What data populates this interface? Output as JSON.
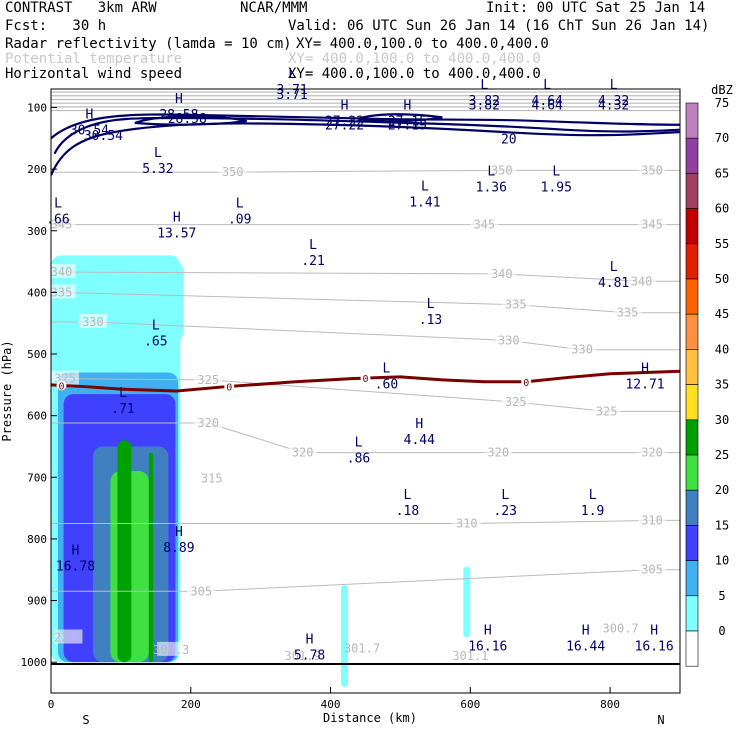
{
  "header": {
    "model": "CONTRAST   3km ARW",
    "org": "NCAR/MMM",
    "init": "Init: 00 UTC Sat 25 Jan 14",
    "fcst": "Fcst:   30 h",
    "valid": "Valid: 06 UTC Sun 26 Jan 14 (16 ChT Sun 26 Jan 14)",
    "field1": "Radar reflectivity (lamda = 10 cm)",
    "field1_xy": "XY= 400.0,100.0 to 400.0,400.0",
    "field2": "Potential temperature",
    "field2_xy": "XY= 400.0,100.0 to 400.0,400.0",
    "field3": "Horizontal wind speed",
    "field3_xy": "XY= 400.0,100.0 to 400.0,400.0"
  },
  "colors": {
    "wind": "#000066",
    "theta": "#bbbbbb",
    "freezing": "#7a0000"
  },
  "chart_data": {
    "type": "cross-section",
    "xlabel": "Distance (km)",
    "ylabel": "Pressure (hPa)",
    "xlim": [
      0,
      900
    ],
    "ylim": [
      1050,
      70
    ],
    "x_ticks": [
      "0",
      "200",
      "400",
      "600",
      "800"
    ],
    "x_tick_values": [
      0,
      200,
      400,
      600,
      800
    ],
    "y_ticks": [
      "100",
      "200",
      "300",
      "400",
      "500",
      "600",
      "700",
      "800",
      "900",
      "1000"
    ],
    "y_tick_values": [
      100,
      200,
      300,
      400,
      500,
      600,
      700,
      800,
      900,
      1000
    ],
    "end_labels": {
      "left": "S",
      "right": "N"
    },
    "colorbar": {
      "unit": "dBZ",
      "levels": [
        "75",
        "70",
        "65",
        "60",
        "55",
        "50",
        "45",
        "40",
        "35",
        "30",
        "25",
        "20",
        "15",
        "10",
        "5",
        "0"
      ],
      "colors": [
        "#c080c0",
        "#9040a0",
        "#a04060",
        "#c00000",
        "#e02000",
        "#ff6000",
        "#ff9040",
        "#ffc040",
        "#ffe020",
        "#00a000",
        "#40e040",
        "#4080c0",
        "#4040ff",
        "#40b0f0",
        "#80ffff",
        "#ffffff"
      ]
    },
    "theta_contours": [
      {
        "label": "350",
        "x": 260,
        "p": 205
      },
      {
        "label": "350",
        "x": 645,
        "p": 202
      },
      {
        "label": "350",
        "x": 860,
        "p": 202
      },
      {
        "label": "345",
        "x": 15,
        "p": 290
      },
      {
        "label": "345",
        "x": 620,
        "p": 290
      },
      {
        "label": "345",
        "x": 860,
        "p": 290
      },
      {
        "label": "340",
        "x": 15,
        "p": 367
      },
      {
        "label": "340",
        "x": 645,
        "p": 370
      },
      {
        "label": "340",
        "x": 845,
        "p": 382
      },
      {
        "label": "335",
        "x": 15,
        "p": 400
      },
      {
        "label": "335",
        "x": 665,
        "p": 420
      },
      {
        "label": "335",
        "x": 825,
        "p": 433
      },
      {
        "label": "330",
        "x": 60,
        "p": 448
      },
      {
        "label": "330",
        "x": 655,
        "p": 478
      },
      {
        "label": "330",
        "x": 760,
        "p": 493
      },
      {
        "label": "325",
        "x": 20,
        "p": 540
      },
      {
        "label": "325",
        "x": 225,
        "p": 542
      },
      {
        "label": "325",
        "x": 665,
        "p": 578
      },
      {
        "label": "325",
        "x": 795,
        "p": 593
      },
      {
        "label": "320",
        "x": 225,
        "p": 612
      },
      {
        "label": "320",
        "x": 360,
        "p": 660
      },
      {
        "label": "320",
        "x": 640,
        "p": 660
      },
      {
        "label": "320",
        "x": 860,
        "p": 660
      },
      {
        "label": "315",
        "x": 230,
        "p": 702
      },
      {
        "label": "310",
        "x": 595,
        "p": 775
      },
      {
        "label": "310",
        "x": 860,
        "p": 770
      },
      {
        "label": "305",
        "x": 215,
        "p": 885
      },
      {
        "label": "305",
        "x": 860,
        "p": 850
      },
      {
        "label": "22.7",
        "x": 25,
        "p": 960
      },
      {
        "label": "302.3",
        "x": 172,
        "p": 980
      },
      {
        "label": "301.9",
        "x": 360,
        "p": 990
      },
      {
        "label": "301.7",
        "x": 445,
        "p": 978
      },
      {
        "label": "301.1",
        "x": 600,
        "p": 990
      },
      {
        "label": "300.7",
        "x": 815,
        "p": 945
      }
    ],
    "wind_contours": [
      {
        "label": "30.54",
        "x": 75,
        "p": 145
      },
      {
        "label": "28.58",
        "x": 195,
        "p": 117
      },
      {
        "label": "27.22",
        "x": 420,
        "p": 128
      },
      {
        "label": "27.15",
        "x": 510,
        "p": 128
      },
      {
        "label": "3.71",
        "x": 345,
        "p": 78
      },
      {
        "label": "3.82",
        "x": 620,
        "p": 95
      },
      {
        "label": "4.64",
        "x": 710,
        "p": 95
      },
      {
        "label": "4.32",
        "x": 805,
        "p": 95
      },
      {
        "label": "20",
        "x": 655,
        "p": 150
      }
    ],
    "extrema": [
      {
        "type": "H",
        "value": "30.54",
        "x": 55,
        "p": 118
      },
      {
        "type": "H",
        "value": "28.58",
        "x": 183,
        "p": 93
      },
      {
        "type": "L",
        "value": "3.71",
        "x": 345,
        "p": 52
      },
      {
        "type": "H",
        "value": "27.22",
        "x": 420,
        "p": 103
      },
      {
        "type": "H",
        "value": "27.15",
        "x": 510,
        "p": 103
      },
      {
        "type": "L",
        "value": "3.82",
        "x": 620,
        "p": 70
      },
      {
        "type": "L",
        "value": "4.64",
        "x": 710,
        "p": 70
      },
      {
        "type": "L",
        "value": "4.32",
        "x": 805,
        "p": 70
      },
      {
        "type": "L",
        "value": "5.32",
        "x": 153,
        "p": 180
      },
      {
        "type": "L",
        "value": "1.36",
        "x": 630,
        "p": 210
      },
      {
        "type": "L",
        "value": "1.95",
        "x": 723,
        "p": 210
      },
      {
        "type": "L",
        "value": "1.41",
        "x": 535,
        "p": 235
      },
      {
        "type": "L",
        "value": ".09",
        "x": 270,
        "p": 262
      },
      {
        "type": "L",
        "value": ".66",
        "x": 10,
        "p": 262
      },
      {
        "type": "H",
        "value": "13.57",
        "x": 180,
        "p": 285
      },
      {
        "type": "L",
        "value": ".21",
        "x": 375,
        "p": 330
      },
      {
        "type": "L",
        "value": "4.81",
        "x": 805,
        "p": 365
      },
      {
        "type": "L",
        "value": ".13",
        "x": 543,
        "p": 425
      },
      {
        "type": "L",
        "value": ".65",
        "x": 150,
        "p": 460
      },
      {
        "type": "L",
        "value": ".60",
        "x": 480,
        "p": 530
      },
      {
        "type": "H",
        "value": "12.71",
        "x": 850,
        "p": 530
      },
      {
        "type": "L",
        "value": ".71",
        "x": 103,
        "p": 570
      },
      {
        "type": "H",
        "value": "4.44",
        "x": 527,
        "p": 620
      },
      {
        "type": "L",
        "value": ".86",
        "x": 440,
        "p": 650
      },
      {
        "type": "L",
        "value": ".18",
        "x": 510,
        "p": 735
      },
      {
        "type": "L",
        "value": ".23",
        "x": 650,
        "p": 735
      },
      {
        "type": "L",
        "value": "1.9",
        "x": 775,
        "p": 735
      },
      {
        "type": "H",
        "value": "8.89",
        "x": 183,
        "p": 795
      },
      {
        "type": "H",
        "value": "16.78",
        "x": 35,
        "p": 825
      },
      {
        "type": "H",
        "value": "5.78",
        "x": 370,
        "p": 970
      },
      {
        "type": "H",
        "value": "16.16",
        "x": 625,
        "p": 955
      },
      {
        "type": "H",
        "value": "16.44",
        "x": 765,
        "p": 955
      },
      {
        "type": "H",
        "value": "16.16",
        "x": 863,
        "p": 955
      }
    ],
    "freezing_level": {
      "label": "0",
      "x": [
        0,
        50,
        100,
        180,
        250,
        350,
        430,
        500,
        560,
        620,
        680,
        740,
        800,
        900
      ],
      "p": [
        550,
        553,
        557,
        560,
        553,
        545,
        540,
        537,
        542,
        545,
        545,
        538,
        532,
        528
      ],
      "label_x": [
        15,
        255,
        450,
        680
      ]
    },
    "reflectivity_bands": [
      {
        "dbz": 5,
        "x0": 0,
        "x1": 185,
        "p_top": 340,
        "p_bot": 1000
      },
      {
        "dbz": 5,
        "x0": 95,
        "x1": 190,
        "p_top": 350,
        "p_bot": 480
      },
      {
        "dbz": 5,
        "x0": 415,
        "x1": 425,
        "p_top": 875,
        "p_bot": 1040
      },
      {
        "dbz": 5,
        "x0": 590,
        "x1": 600,
        "p_top": 845,
        "p_bot": 960
      },
      {
        "dbz": 10,
        "x0": 10,
        "x1": 182,
        "p_top": 530,
        "p_bot": 1000
      },
      {
        "dbz": 15,
        "x0": 18,
        "x1": 178,
        "p_top": 565,
        "p_bot": 1000
      },
      {
        "dbz": 20,
        "x0": 60,
        "x1": 168,
        "p_top": 650,
        "p_bot": 1000
      },
      {
        "dbz": 25,
        "x0": 85,
        "x1": 140,
        "p_top": 690,
        "p_bot": 1000
      },
      {
        "dbz": 30,
        "x0": 95,
        "x1": 115,
        "p_top": 640,
        "p_bot": 1000
      },
      {
        "dbz": 30,
        "x0": 140,
        "x1": 146,
        "p_top": 660,
        "p_bot": 1000
      }
    ]
  }
}
